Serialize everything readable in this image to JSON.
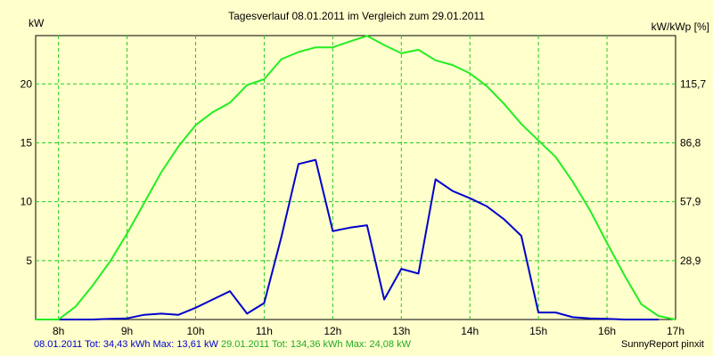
{
  "chart_data": {
    "type": "line",
    "title": "Tagesverlauf 08.01.2011 im Vergleich zum 29.01.2011",
    "ylabel_left": "kW",
    "ylabel_right": "kW/kWp [%]",
    "x_min": 7.6667,
    "x_max": 17.0,
    "x_ticks": [
      {
        "label": "8h",
        "x": 8
      },
      {
        "label": "9h",
        "x": 9
      },
      {
        "label": "10h",
        "x": 10
      },
      {
        "label": "11h",
        "x": 11
      },
      {
        "label": "12h",
        "x": 12
      },
      {
        "label": "13h",
        "x": 13
      },
      {
        "label": "14h",
        "x": 14
      },
      {
        "label": "15h",
        "x": 15
      },
      {
        "label": "16h",
        "x": 16
      },
      {
        "label": "17h",
        "x": 17
      }
    ],
    "ylim": [
      0,
      24.1
    ],
    "y_ticks_left": [
      {
        "label": "5",
        "value": 5
      },
      {
        "label": "10",
        "value": 10
      },
      {
        "label": "15",
        "value": 15
      },
      {
        "label": "20",
        "value": 20
      }
    ],
    "y_ticks_right": [
      {
        "label": "28,9",
        "value": 5
      },
      {
        "label": "57,9",
        "value": 10
      },
      {
        "label": "86,8",
        "value": 15
      },
      {
        "label": "115,7",
        "value": 20
      }
    ],
    "grid": true,
    "series": [
      {
        "name": "08.01.2011",
        "color": "#0000cc",
        "x": [
          7.6667,
          8.0,
          8.25,
          8.5,
          8.75,
          9.0,
          9.25,
          9.5,
          9.75,
          10.0,
          10.25,
          10.5,
          10.75,
          11.0,
          11.25,
          11.5,
          11.75,
          12.0,
          12.25,
          12.5,
          12.75,
          13.0,
          13.25,
          13.5,
          13.75,
          14.0,
          14.25,
          14.5,
          14.75,
          15.0,
          15.25,
          15.5,
          15.75,
          16.0,
          16.25,
          16.5,
          16.75
        ],
        "y": [
          0.0,
          0.0,
          0.0,
          0.0,
          0.05,
          0.1,
          0.4,
          0.5,
          0.4,
          1.0,
          1.7,
          2.4,
          0.5,
          1.4,
          7.0,
          13.2,
          13.55,
          7.5,
          7.8,
          8.0,
          1.7,
          4.3,
          3.9,
          11.9,
          10.9,
          10.3,
          9.6,
          8.5,
          7.1,
          0.6,
          0.6,
          0.2,
          0.1,
          0.05,
          0.0,
          0.0,
          0.0
        ]
      },
      {
        "name": "29.01.2011",
        "color": "#22ee22",
        "x": [
          7.6667,
          8.0,
          8.25,
          8.5,
          8.75,
          9.0,
          9.25,
          9.5,
          9.75,
          10.0,
          10.25,
          10.5,
          10.75,
          11.0,
          11.25,
          11.5,
          11.75,
          12.0,
          12.25,
          12.5,
          12.75,
          13.0,
          13.25,
          13.5,
          13.75,
          14.0,
          14.25,
          14.5,
          14.75,
          15.0,
          15.25,
          15.5,
          15.75,
          16.0,
          16.25,
          16.5,
          16.75,
          17.0
        ],
        "y": [
          0.0,
          0.0,
          1.1,
          2.9,
          4.9,
          7.3,
          9.9,
          12.5,
          14.7,
          16.5,
          17.6,
          18.4,
          19.9,
          20.4,
          22.1,
          22.7,
          23.1,
          23.1,
          23.6,
          24.08,
          23.3,
          22.6,
          22.9,
          22.0,
          21.6,
          20.9,
          19.8,
          18.3,
          16.6,
          15.2,
          13.8,
          11.7,
          9.3,
          6.5,
          3.8,
          1.3,
          0.3,
          0.0
        ]
      }
    ]
  },
  "footer": {
    "series1_text": "08.01.2011 Tot: 34,43 kWh Max: 13,61 kW",
    "series2_text": "29.01.2011 Tot: 134,36 kWh Max: 24,08 kW",
    "credit": "SunnyReport pinxit"
  }
}
